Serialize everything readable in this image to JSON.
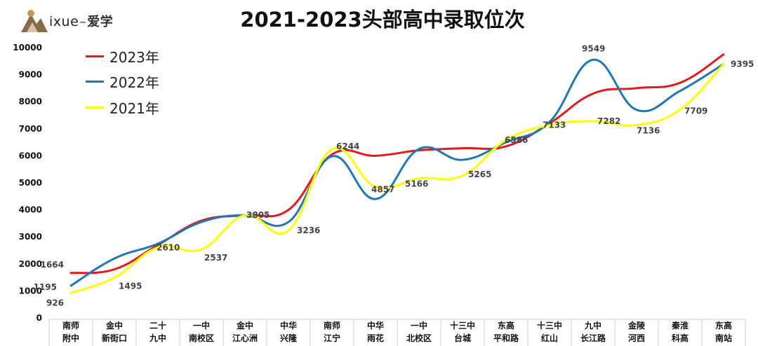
{
  "header": {
    "logo_text": "ixue",
    "logo_cn": "爱学",
    "title": "2021-2023头部高中录取位次"
  },
  "colors": {
    "series_2023": "#e41a1c",
    "series_2022": "#1f77b4",
    "series_2021": "#ffff00"
  },
  "chart_data": {
    "type": "line",
    "title": "2021-2023头部高中录取位次",
    "xlabel": "",
    "ylabel": "",
    "ylim": [
      0,
      10000
    ],
    "yticks": [
      "0",
      "1000",
      "2000",
      "3000",
      "4000",
      "5000",
      "6000",
      "7000",
      "8000",
      "9000",
      "10000"
    ],
    "grid": false,
    "legend_position": "top-left",
    "categories": [
      [
        "南师",
        "附中"
      ],
      [
        "金中",
        "新街口"
      ],
      [
        "二十",
        "九中"
      ],
      [
        "一中",
        "南校区"
      ],
      [
        "金中",
        "江心洲"
      ],
      [
        "中华",
        "兴隆"
      ],
      [
        "南师",
        "江宁"
      ],
      [
        "中华",
        "雨花"
      ],
      [
        "一中",
        "北校区"
      ],
      [
        "十三中",
        "台城"
      ],
      [
        "东高",
        "平和路"
      ],
      [
        "十三中",
        "红山"
      ],
      [
        "九中",
        "长江路"
      ],
      [
        "金陵",
        "河西"
      ],
      [
        "秦淮",
        "科高"
      ],
      [
        "东高",
        "南站"
      ]
    ],
    "series": [
      {
        "name": "2023年",
        "values": [
          1664,
          1800,
          2700,
          3600,
          3805,
          4000,
          6050,
          6000,
          6200,
          6280,
          6350,
          7200,
          8300,
          8500,
          8700,
          9750
        ]
      },
      {
        "name": "2022年",
        "values": [
          1195,
          2200,
          2750,
          3550,
          3800,
          3550,
          5980,
          4400,
          6250,
          5850,
          6500,
          7250,
          9549,
          7700,
          8400,
          9395
        ]
      },
      {
        "name": "2021年",
        "values": [
          926,
          1495,
          2610,
          2537,
          3805,
          3236,
          6244,
          4857,
          5166,
          5265,
          6586,
          7133,
          7282,
          7136,
          7709,
          9395
        ]
      }
    ],
    "data_labels": [
      {
        "series": 0,
        "index": 0,
        "text": "1664"
      },
      {
        "series": 1,
        "index": 0,
        "text": "1195"
      },
      {
        "series": 2,
        "index": 0,
        "text": "926"
      },
      {
        "series": 2,
        "index": 1,
        "text": "1495"
      },
      {
        "series": 2,
        "index": 2,
        "text": "2610"
      },
      {
        "series": 2,
        "index": 3,
        "text": "2537"
      },
      {
        "series": 2,
        "index": 4,
        "text": "3805"
      },
      {
        "series": 2,
        "index": 5,
        "text": "3236"
      },
      {
        "series": 2,
        "index": 6,
        "text": "6244"
      },
      {
        "series": 2,
        "index": 7,
        "text": "4857"
      },
      {
        "series": 2,
        "index": 8,
        "text": "5166"
      },
      {
        "series": 2,
        "index": 9,
        "text": "5265"
      },
      {
        "series": 2,
        "index": 10,
        "text": "6586"
      },
      {
        "series": 2,
        "index": 11,
        "text": "7133"
      },
      {
        "series": 2,
        "index": 12,
        "text": "7282"
      },
      {
        "series": 2,
        "index": 13,
        "text": "7136"
      },
      {
        "series": 2,
        "index": 14,
        "text": "7709"
      },
      {
        "series": 1,
        "index": 12,
        "text": "9549"
      },
      {
        "series": 1,
        "index": 15,
        "text": "9395"
      }
    ]
  }
}
